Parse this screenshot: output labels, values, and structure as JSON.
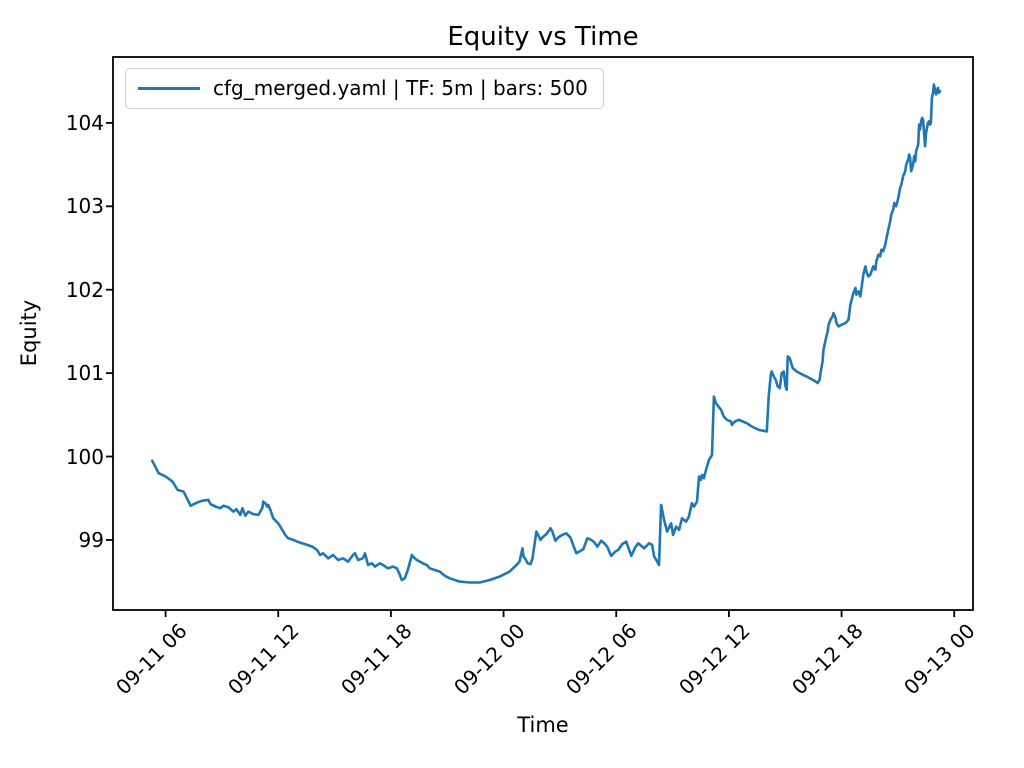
{
  "figure": {
    "title": "Equity vs Time",
    "xlabel": "Time",
    "ylabel": "Equity",
    "background": "#ffffff",
    "spine_color": "#000000",
    "legend": {
      "label": "cfg_merged.yaml | TF: 5m | bars: 500",
      "line_color": "#1f77b4"
    }
  },
  "chart_data": {
    "type": "line",
    "title": "Equity vs Time",
    "xlabel": "Time",
    "ylabel": "Equity",
    "grid": false,
    "legend_position": "upper left",
    "x_unit": "hours since 09-11 00:00",
    "xlim": [
      3.2,
      49.0
    ],
    "ylim": [
      98.16,
      104.79
    ],
    "x_ticks": {
      "values": [
        6,
        12,
        18,
        24,
        30,
        36,
        42,
        48
      ],
      "labels": [
        "09-11 06",
        "09-11 12",
        "09-11 18",
        "09-12 00",
        "09-12 06",
        "09-12 12",
        "09-12 18",
        "09-13 00"
      ]
    },
    "y_ticks": {
      "values": [
        99,
        100,
        101,
        102,
        103,
        104
      ],
      "labels": [
        "99",
        "100",
        "101",
        "102",
        "103",
        "104"
      ]
    },
    "series": [
      {
        "name": "cfg_merged.yaml | TF: 5m | bars: 500",
        "color": "#1f77b4",
        "line_width": 2.6,
        "points": [
          [
            5.29,
            99.95
          ],
          [
            5.63,
            99.8
          ],
          [
            6.0,
            99.76
          ],
          [
            6.37,
            99.7
          ],
          [
            6.64,
            99.6
          ],
          [
            6.96,
            99.58
          ],
          [
            7.33,
            99.41
          ],
          [
            7.7,
            99.45
          ],
          [
            7.96,
            99.47
          ],
          [
            8.28,
            99.48
          ],
          [
            8.39,
            99.43
          ],
          [
            8.66,
            99.4
          ],
          [
            8.92,
            99.38
          ],
          [
            9.08,
            99.41
          ],
          [
            9.35,
            99.39
          ],
          [
            9.61,
            99.34
          ],
          [
            9.77,
            99.37
          ],
          [
            9.98,
            99.3
          ],
          [
            10.09,
            99.38
          ],
          [
            10.25,
            99.29
          ],
          [
            10.41,
            99.34
          ],
          [
            10.67,
            99.31
          ],
          [
            10.94,
            99.3
          ],
          [
            11.15,
            99.38
          ],
          [
            11.2,
            99.46
          ],
          [
            11.31,
            99.44
          ],
          [
            11.42,
            99.4
          ],
          [
            11.47,
            99.42
          ],
          [
            11.58,
            99.36
          ],
          [
            11.73,
            99.26
          ],
          [
            12.0,
            99.2
          ],
          [
            12.11,
            99.16
          ],
          [
            12.27,
            99.1
          ],
          [
            12.37,
            99.06
          ],
          [
            12.53,
            99.02
          ],
          [
            12.8,
            99.0
          ],
          [
            13.01,
            98.98
          ],
          [
            13.27,
            98.96
          ],
          [
            13.54,
            98.94
          ],
          [
            13.81,
            98.92
          ],
          [
            14.07,
            98.88
          ],
          [
            14.23,
            98.82
          ],
          [
            14.39,
            98.84
          ],
          [
            14.66,
            98.78
          ],
          [
            14.92,
            98.82
          ],
          [
            15.19,
            98.76
          ],
          [
            15.45,
            98.78
          ],
          [
            15.72,
            98.74
          ],
          [
            15.98,
            98.82
          ],
          [
            16.09,
            98.84
          ],
          [
            16.25,
            98.76
          ],
          [
            16.51,
            98.78
          ],
          [
            16.62,
            98.84
          ],
          [
            16.78,
            98.7
          ],
          [
            16.99,
            98.72
          ],
          [
            17.15,
            98.68
          ],
          [
            17.42,
            98.72
          ],
          [
            17.58,
            98.7
          ],
          [
            17.84,
            98.66
          ],
          [
            18.11,
            98.68
          ],
          [
            18.32,
            98.66
          ],
          [
            18.48,
            98.58
          ],
          [
            18.58,
            98.52
          ],
          [
            18.74,
            98.54
          ],
          [
            18.9,
            98.64
          ],
          [
            19.12,
            98.82
          ],
          [
            19.17,
            98.8
          ],
          [
            19.38,
            98.76
          ],
          [
            19.54,
            98.74
          ],
          [
            19.7,
            98.72
          ],
          [
            19.91,
            98.7
          ],
          [
            20.07,
            98.66
          ],
          [
            20.6,
            98.62
          ],
          [
            20.87,
            98.57
          ],
          [
            21.13,
            98.54
          ],
          [
            21.66,
            98.5
          ],
          [
            22.2,
            98.49
          ],
          [
            22.73,
            98.49
          ],
          [
            23.26,
            98.52
          ],
          [
            23.79,
            98.56
          ],
          [
            24.32,
            98.62
          ],
          [
            24.69,
            98.7
          ],
          [
            24.85,
            98.74
          ],
          [
            25.01,
            98.9
          ],
          [
            25.06,
            98.8
          ],
          [
            25.17,
            98.77
          ],
          [
            25.28,
            98.72
          ],
          [
            25.44,
            98.71
          ],
          [
            25.54,
            98.78
          ],
          [
            25.75,
            99.1
          ],
          [
            25.86,
            99.05
          ],
          [
            25.97,
            99.0
          ],
          [
            26.07,
            99.03
          ],
          [
            26.28,
            99.07
          ],
          [
            26.5,
            99.14
          ],
          [
            26.6,
            99.1
          ],
          [
            26.76,
            98.99
          ],
          [
            26.92,
            99.03
          ],
          [
            27.13,
            99.06
          ],
          [
            27.34,
            99.08
          ],
          [
            27.56,
            99.03
          ],
          [
            27.77,
            98.9
          ],
          [
            27.88,
            98.84
          ],
          [
            28.03,
            98.86
          ],
          [
            28.25,
            98.89
          ],
          [
            28.46,
            99.02
          ],
          [
            28.67,
            99.0
          ],
          [
            28.83,
            98.97
          ],
          [
            28.99,
            98.92
          ],
          [
            29.2,
            98.99
          ],
          [
            29.36,
            98.96
          ],
          [
            29.52,
            98.92
          ],
          [
            29.73,
            98.81
          ],
          [
            29.95,
            98.86
          ],
          [
            30.11,
            98.88
          ],
          [
            30.32,
            98.95
          ],
          [
            30.53,
            98.98
          ],
          [
            30.8,
            98.81
          ],
          [
            31.01,
            98.91
          ],
          [
            31.17,
            98.96
          ],
          [
            31.49,
            98.9
          ],
          [
            31.75,
            98.96
          ],
          [
            31.91,
            98.94
          ],
          [
            32.02,
            98.8
          ],
          [
            32.18,
            98.74
          ],
          [
            32.28,
            98.7
          ],
          [
            32.39,
            99.42
          ],
          [
            32.55,
            99.24
          ],
          [
            32.71,
            99.1
          ],
          [
            32.92,
            99.2
          ],
          [
            33.03,
            99.06
          ],
          [
            33.19,
            99.16
          ],
          [
            33.35,
            99.12
          ],
          [
            33.5,
            99.26
          ],
          [
            33.72,
            99.22
          ],
          [
            33.87,
            99.28
          ],
          [
            34.03,
            99.44
          ],
          [
            34.14,
            99.4
          ],
          [
            34.3,
            99.46
          ],
          [
            34.41,
            99.76
          ],
          [
            34.51,
            99.72
          ],
          [
            34.57,
            99.78
          ],
          [
            34.67,
            99.74
          ],
          [
            34.78,
            99.84
          ],
          [
            34.94,
            99.96
          ],
          [
            35.1,
            100.02
          ],
          [
            35.2,
            100.72
          ],
          [
            35.31,
            100.64
          ],
          [
            35.58,
            100.56
          ],
          [
            35.73,
            100.48
          ],
          [
            35.89,
            100.44
          ],
          [
            36.11,
            100.42
          ],
          [
            36.16,
            100.38
          ],
          [
            36.32,
            100.42
          ],
          [
            36.53,
            100.44
          ],
          [
            36.74,
            100.42
          ],
          [
            36.95,
            100.4
          ],
          [
            37.22,
            100.36
          ],
          [
            37.59,
            100.32
          ],
          [
            38.02,
            100.3
          ],
          [
            38.12,
            100.72
          ],
          [
            38.23,
            100.98
          ],
          [
            38.28,
            101.02
          ],
          [
            38.39,
            100.96
          ],
          [
            38.49,
            100.92
          ],
          [
            38.6,
            100.84
          ],
          [
            38.71,
            100.82
          ],
          [
            38.81,
            101.0
          ],
          [
            38.92,
            101.02
          ],
          [
            39.02,
            100.84
          ],
          [
            39.08,
            100.8
          ],
          [
            39.13,
            101.2
          ],
          [
            39.24,
            101.18
          ],
          [
            39.29,
            101.14
          ],
          [
            39.4,
            101.06
          ],
          [
            39.5,
            101.04
          ],
          [
            39.61,
            101.02
          ],
          [
            39.77,
            101.0
          ],
          [
            39.93,
            100.98
          ],
          [
            40.14,
            100.96
          ],
          [
            40.3,
            100.94
          ],
          [
            40.46,
            100.92
          ],
          [
            40.62,
            100.9
          ],
          [
            40.72,
            100.88
          ],
          [
            40.83,
            100.92
          ],
          [
            40.88,
            101.0
          ],
          [
            40.99,
            101.14
          ],
          [
            41.04,
            101.28
          ],
          [
            41.15,
            101.4
          ],
          [
            41.26,
            101.5
          ],
          [
            41.31,
            101.58
          ],
          [
            41.41,
            101.64
          ],
          [
            41.52,
            101.68
          ],
          [
            41.57,
            101.72
          ],
          [
            41.68,
            101.66
          ],
          [
            41.73,
            101.6
          ],
          [
            41.84,
            101.56
          ],
          [
            42.0,
            101.58
          ],
          [
            42.21,
            101.6
          ],
          [
            42.37,
            101.64
          ],
          [
            42.47,
            101.82
          ],
          [
            42.63,
            101.96
          ],
          [
            42.74,
            102.02
          ],
          [
            42.79,
            101.94
          ],
          [
            42.9,
            101.98
          ],
          [
            43.0,
            101.92
          ],
          [
            43.06,
            102.02
          ],
          [
            43.16,
            102.18
          ],
          [
            43.27,
            102.28
          ],
          [
            43.32,
            102.22
          ],
          [
            43.43,
            102.16
          ],
          [
            43.53,
            102.18
          ],
          [
            43.69,
            102.28
          ],
          [
            43.8,
            102.24
          ],
          [
            43.85,
            102.34
          ],
          [
            43.96,
            102.42
          ],
          [
            44.06,
            102.4
          ],
          [
            44.12,
            102.48
          ],
          [
            44.22,
            102.46
          ],
          [
            44.33,
            102.54
          ],
          [
            44.38,
            102.6
          ],
          [
            44.49,
            102.72
          ],
          [
            44.59,
            102.82
          ],
          [
            44.65,
            102.9
          ],
          [
            44.75,
            102.96
          ],
          [
            44.81,
            103.04
          ],
          [
            44.91,
            103.0
          ],
          [
            45.02,
            103.1
          ],
          [
            45.12,
            103.22
          ],
          [
            45.18,
            103.26
          ],
          [
            45.28,
            103.36
          ],
          [
            45.39,
            103.42
          ],
          [
            45.44,
            103.5
          ],
          [
            45.55,
            103.56
          ],
          [
            45.6,
            103.62
          ],
          [
            45.65,
            103.58
          ],
          [
            45.71,
            103.42
          ],
          [
            45.81,
            103.5
          ],
          [
            45.87,
            103.6
          ],
          [
            45.92,
            103.54
          ],
          [
            45.97,
            103.66
          ],
          [
            46.08,
            103.74
          ],
          [
            46.13,
            103.98
          ],
          [
            46.18,
            103.92
          ],
          [
            46.24,
            104.02
          ],
          [
            46.29,
            104.06
          ],
          [
            46.34,
            104.04
          ],
          [
            46.4,
            103.86
          ],
          [
            46.45,
            103.72
          ],
          [
            46.5,
            103.88
          ],
          [
            46.55,
            103.94
          ],
          [
            46.6,
            104.0
          ],
          [
            46.66,
            104.02
          ],
          [
            46.71,
            103.98
          ],
          [
            46.76,
            104.0
          ],
          [
            46.81,
            104.3
          ],
          [
            46.87,
            104.36
          ],
          [
            46.92,
            104.46
          ],
          [
            46.97,
            104.4
          ],
          [
            47.03,
            104.34
          ],
          [
            47.08,
            104.38
          ],
          [
            47.13,
            104.42
          ],
          [
            47.18,
            104.36
          ],
          [
            47.24,
            104.38
          ]
        ]
      }
    ]
  }
}
